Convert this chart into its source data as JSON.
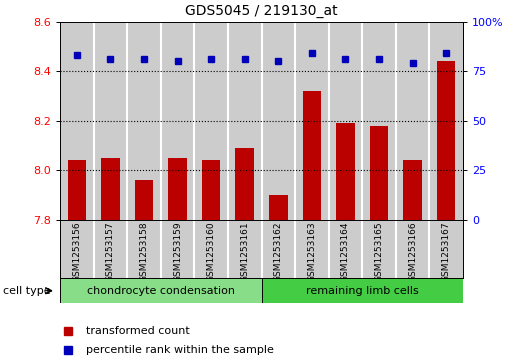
{
  "title": "GDS5045 / 219130_at",
  "samples": [
    "GSM1253156",
    "GSM1253157",
    "GSM1253158",
    "GSM1253159",
    "GSM1253160",
    "GSM1253161",
    "GSM1253162",
    "GSM1253163",
    "GSM1253164",
    "GSM1253165",
    "GSM1253166",
    "GSM1253167"
  ],
  "bar_values": [
    8.04,
    8.05,
    7.96,
    8.05,
    8.04,
    8.09,
    7.9,
    8.32,
    8.19,
    8.18,
    8.04,
    8.44
  ],
  "dot_values": [
    83,
    81,
    81,
    80,
    81,
    81,
    80,
    84,
    81,
    81,
    79,
    84
  ],
  "bar_color": "#bb0000",
  "dot_color": "#0000bb",
  "ylim_left": [
    7.8,
    8.6
  ],
  "ylim_right": [
    0,
    100
  ],
  "yticks_left": [
    7.8,
    8.0,
    8.2,
    8.4,
    8.6
  ],
  "yticks_right": [
    0,
    25,
    50,
    75,
    100
  ],
  "grid_values": [
    8.0,
    8.2,
    8.4
  ],
  "group1_label": "chondrocyte condensation",
  "group2_label": "remaining limb cells",
  "group1_count": 6,
  "group2_count": 6,
  "cell_type_label": "cell type",
  "legend1": "transformed count",
  "legend2": "percentile rank within the sample",
  "group1_color": "#88dd88",
  "group2_color": "#44cc44",
  "sample_bg_color": "#cccccc",
  "bar_width": 0.55
}
